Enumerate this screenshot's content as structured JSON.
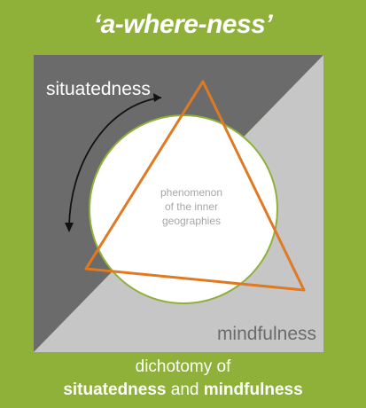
{
  "title": "‘a-where-ness’",
  "labels": {
    "top_left": "situatedness",
    "bottom_right": "mindfulness",
    "center": [
      "phenomenon",
      "of the inner",
      "geographies"
    ]
  },
  "caption": {
    "line1": "dichotomy of",
    "term_a": "situatedness",
    "connector": " and ",
    "term_b": "mindfulness"
  },
  "colors": {
    "background": "#8fb13a",
    "dark_panel": "#6b6b6b",
    "light_panel": "#c6c6c6",
    "circle_fill": "#ffffff",
    "circle_stroke": "#8fb13a",
    "triangle_stroke": "#e07a22",
    "label_text": "#ffffff",
    "center_text": "#a6a6a6",
    "arrow": "#111111"
  }
}
